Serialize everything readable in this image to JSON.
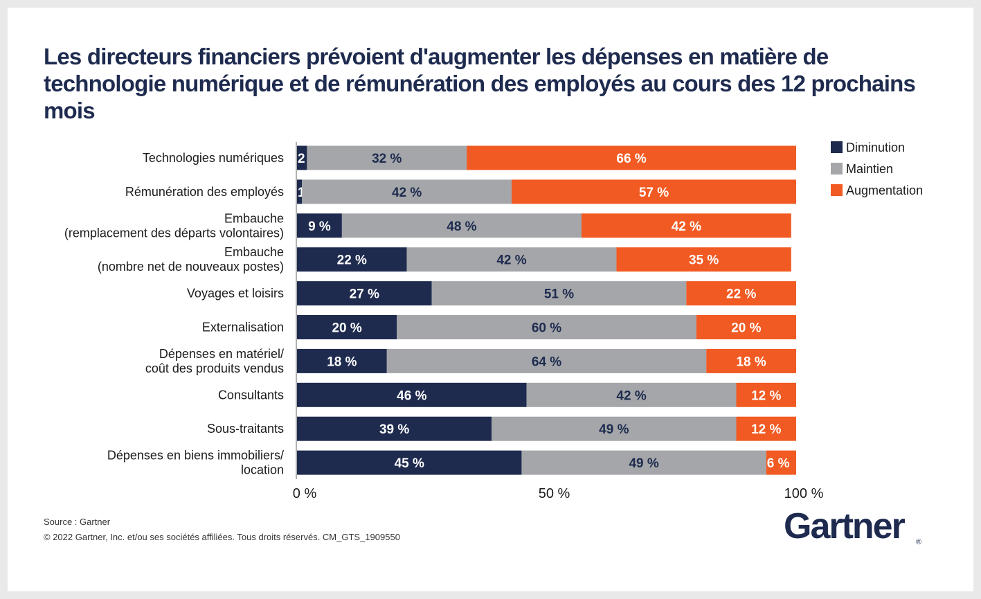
{
  "title": "Les directeurs financiers prévoient d'augmenter les dépenses en matière de technologie numérique et de rémunération des employés au cours des 12 prochains mois",
  "colors": {
    "diminution": "#1e2b4f",
    "maintien": "#a4a6a9",
    "augmentation": "#f15a22",
    "axis": "#b0b0b0"
  },
  "chart_data": {
    "type": "bar",
    "orientation": "horizontal",
    "stacked": true,
    "categories": [
      "Technologies numériques",
      "Rémunération des employés",
      "Embauche\n(remplacement des départs volontaires)",
      "Embauche\n(nombre net de nouveaux postes)",
      "Voyages et loisirs",
      "Externalisation",
      "Dépenses en matériel/\ncoût des produits vendus",
      "Consultants",
      "Sous-traitants",
      "Dépenses en biens immobiliers/\nlocation"
    ],
    "series": [
      {
        "name": "Diminution",
        "values": [
          2,
          1,
          9,
          22,
          27,
          20,
          18,
          46,
          39,
          45
        ]
      },
      {
        "name": "Maintien",
        "values": [
          32,
          42,
          48,
          42,
          51,
          60,
          64,
          42,
          49,
          49
        ]
      },
      {
        "name": "Augmentation",
        "values": [
          66,
          57,
          42,
          35,
          22,
          20,
          18,
          12,
          12,
          6
        ]
      }
    ],
    "value_suffix": " %",
    "xlim": [
      0,
      100
    ],
    "xticks": [
      0,
      50,
      100
    ],
    "xtick_labels": [
      "0 %",
      "50 %",
      "100 %"
    ],
    "legend_position": "top-right",
    "grid": false
  },
  "footer": {
    "source": "Source : Gartner",
    "copyright": "© 2022 Gartner, Inc. et/ou ses sociétés affiliées. Tous droits réservés. CM_GTS_1909550"
  },
  "logo": {
    "text": "Gartner",
    "mark": "®"
  }
}
